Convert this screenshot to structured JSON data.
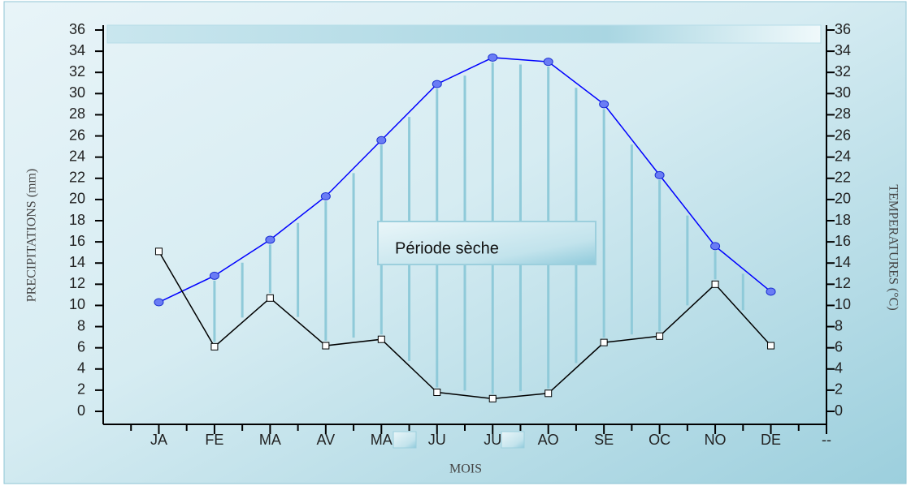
{
  "chart_data": {
    "type": "line",
    "x_label": "MOIS",
    "y_label": "PRECIPITATIONS (mm)",
    "y2_label": "TEMPERATURES (°C)",
    "annotation": "Période sèche",
    "categories": [
      "JA",
      "FE",
      "MA",
      "AV",
      "MA",
      "JU",
      "JU",
      "AO",
      "SE",
      "OC",
      "NO",
      "DE",
      "--"
    ],
    "series": [
      {
        "name": "Températures",
        "color": "#0000ff",
        "axis": "y2",
        "values": [
          10.3,
          12.8,
          16.2,
          20.3,
          25.6,
          30.9,
          33.4,
          33.0,
          29.0,
          22.3,
          15.6,
          11.3,
          null
        ]
      },
      {
        "name": "Précipitations",
        "color": "#000000",
        "values": [
          15.1,
          6.1,
          10.7,
          6.2,
          6.8,
          1.8,
          1.2,
          1.7,
          6.5,
          7.1,
          12.0,
          6.2,
          null
        ]
      }
    ],
    "ylim": [
      0,
      36
    ],
    "yticks": [
      0,
      2,
      4,
      6,
      8,
      10,
      12,
      14,
      16,
      18,
      20,
      22,
      24,
      26,
      28,
      30,
      32,
      34,
      36
    ],
    "y2lim": [
      0,
      36
    ],
    "y2ticks": [
      0,
      2,
      4,
      6,
      8,
      10,
      12,
      14,
      16,
      18,
      20,
      22,
      24,
      26,
      28,
      30,
      32,
      34,
      36
    ]
  }
}
